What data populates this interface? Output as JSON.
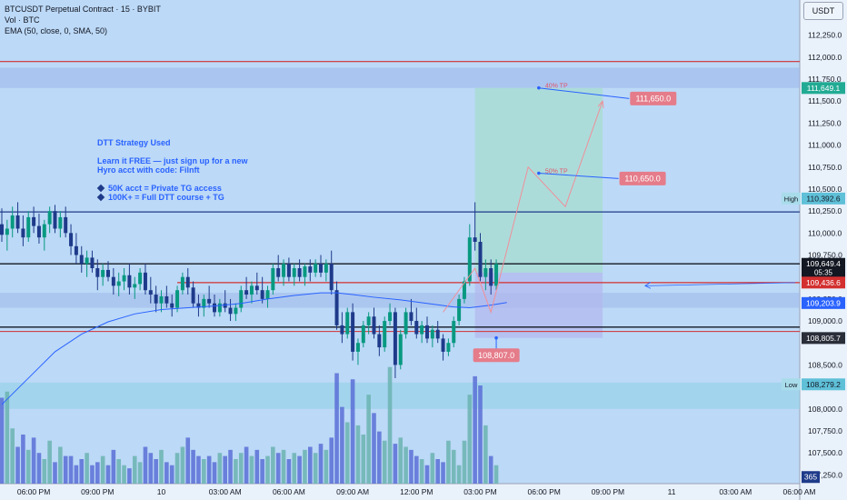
{
  "header": {
    "title": "BTCUSDT Perpetual Contract · 15 · BYBIT",
    "volume": "Vol · BTC",
    "indicator": "EMA (50, close, 0, SMA, 50)"
  },
  "currency": "USDT",
  "note": {
    "line1": "DTT Strategy Used",
    "line2": "Learn it FREE — just sign up for a new",
    "line3": "Hyro acct with code: Filnft",
    "bullet1": "50K acct = Private TG access",
    "bullet2": "100K+ = Full DTT course + TG"
  },
  "price_axis": {
    "ticks": [
      {
        "v": 112500,
        "label": "112,500.0"
      },
      {
        "v": 112250,
        "label": "112,250.0"
      },
      {
        "v": 112000,
        "label": "112,000.0"
      },
      {
        "v": 111750,
        "label": "111,750.0"
      },
      {
        "v": 111500,
        "label": "111,500.0"
      },
      {
        "v": 111250,
        "label": "111,250.0"
      },
      {
        "v": 111000,
        "label": "111,000.0"
      },
      {
        "v": 110750,
        "label": "110,750.0"
      },
      {
        "v": 110500,
        "label": "110,500.0"
      },
      {
        "v": 110250,
        "label": "110,250.0"
      },
      {
        "v": 110000,
        "label": "110,000.0"
      },
      {
        "v": 109750,
        "label": "109,750.0"
      },
      {
        "v": 109250,
        "label": "109,250.0"
      },
      {
        "v": 109000,
        "label": "109,000.0"
      },
      {
        "v": 108500,
        "label": "108,500.0"
      },
      {
        "v": 108000,
        "label": "108,000.0"
      },
      {
        "v": 107750,
        "label": "107,750.0"
      },
      {
        "v": 107500,
        "label": "107,500.0"
      },
      {
        "v": 107250,
        "label": "107,250.0"
      }
    ],
    "badges": [
      {
        "name": "tp-level-badge",
        "v": 111649.1,
        "label": "111,649.1",
        "color": "#22ab94"
      },
      {
        "name": "last-price-badge",
        "v": 109649.4,
        "label": "109,649.4",
        "sub": "05:35",
        "color": "#131722"
      },
      {
        "name": "resistance-badge",
        "v": 109436.6,
        "label": "109,436.6",
        "color": "#d32f2f"
      },
      {
        "name": "ema-badge",
        "v": 109203.9,
        "label": "109,203.9",
        "color": "#2962ff"
      },
      {
        "name": "stop-badge",
        "v": 108805.7,
        "label": "108,805.7",
        "color": "#2a2e39"
      },
      {
        "name": "volume-badge",
        "v": 107225,
        "label": "365",
        "color": "#1e3a8a"
      }
    ],
    "high": {
      "tag": "High",
      "v": 110392.6,
      "label": "110,392.6"
    },
    "low": {
      "tag": "Low",
      "v": 108279.2,
      "label": "108,279.2"
    }
  },
  "time_axis": [
    {
      "label": "06:00 PM",
      "i": 6
    },
    {
      "label": "09:00 PM",
      "i": 18
    },
    {
      "label": "10",
      "i": 30
    },
    {
      "label": "03:00 AM",
      "i": 42
    },
    {
      "label": "06:00 AM",
      "i": 54
    },
    {
      "label": "09:00 AM",
      "i": 66
    },
    {
      "label": "12:00 PM",
      "i": 78
    },
    {
      "label": "03:00 PM",
      "i": 90
    },
    {
      "label": "06:00 PM",
      "i": 102
    },
    {
      "label": "09:00 PM",
      "i": 114
    },
    {
      "label": "11",
      "i": 126
    },
    {
      "label": "03:00 AM",
      "i": 138
    },
    {
      "label": "06:00 AM",
      "i": 150
    }
  ],
  "annotations": {
    "tp40": {
      "text": "40% TP",
      "price": "111,650.0"
    },
    "tp50": {
      "text": "50% TP",
      "price": "110,650.0"
    },
    "sl": {
      "price": "108,807.0"
    }
  },
  "levels": {
    "red_top": 111950,
    "zone_top": [
      111880,
      111650
    ],
    "blue_line": 110240,
    "black_line": 109650,
    "red_line": 109436,
    "zone_mid": [
      109320,
      109150
    ],
    "black_line2": 108930,
    "red_line2": 108880,
    "zone_bottom": [
      108300,
      108000
    ]
  },
  "colors": {
    "bull": "#089981",
    "bear": "#1e3a8a",
    "vol_bull": "#6bb3b0",
    "vol_bear": "#5b6fd6",
    "ema": "#2962ff"
  },
  "chart_data": {
    "type": "candlestick",
    "ylim": [
      107150,
      112650
    ],
    "candles": [
      [
        110100,
        110280,
        109900,
        109980
      ],
      [
        109980,
        110150,
        109800,
        110050
      ],
      [
        110050,
        110300,
        109950,
        110200
      ],
      [
        110200,
        110350,
        110000,
        110050
      ],
      [
        110050,
        110200,
        109850,
        109950
      ],
      [
        109950,
        110250,
        109900,
        110180
      ],
      [
        110180,
        110300,
        110000,
        110080
      ],
      [
        110080,
        110220,
        109880,
        109950
      ],
      [
        109950,
        110150,
        109800,
        110100
      ],
      [
        110100,
        110300,
        110000,
        110250
      ],
      [
        110250,
        110320,
        110000,
        110050
      ],
      [
        110050,
        110250,
        109950,
        110180
      ],
      [
        110180,
        110300,
        109950,
        110000
      ],
      [
        110000,
        110100,
        109750,
        109850
      ],
      [
        109850,
        110000,
        109650,
        109750
      ],
      [
        109750,
        109850,
        109550,
        109650
      ],
      [
        109650,
        109800,
        109500,
        109720
      ],
      [
        109720,
        109800,
        109550,
        109600
      ],
      [
        109600,
        109700,
        109350,
        109500
      ],
      [
        109500,
        109650,
        109400,
        109580
      ],
      [
        109580,
        109680,
        109450,
        109500
      ],
      [
        109500,
        109600,
        109300,
        109400
      ],
      [
        109400,
        109550,
        109280,
        109450
      ],
      [
        109450,
        109600,
        109350,
        109520
      ],
      [
        109520,
        109650,
        109300,
        109380
      ],
      [
        109380,
        109500,
        109250,
        109420
      ],
      [
        109420,
        109600,
        109350,
        109550
      ],
      [
        109550,
        109650,
        109300,
        109350
      ],
      [
        109350,
        109500,
        109200,
        109300
      ],
      [
        109300,
        109400,
        109100,
        109200
      ],
      [
        109200,
        109350,
        109100,
        109280
      ],
      [
        109280,
        109400,
        109150,
        109200
      ],
      [
        109200,
        109300,
        109050,
        109150
      ],
      [
        109150,
        109400,
        109100,
        109350
      ],
      [
        109350,
        109550,
        109300,
        109500
      ],
      [
        109500,
        109600,
        109300,
        109380
      ],
      [
        109380,
        109450,
        109150,
        109200
      ],
      [
        109200,
        109300,
        109050,
        109150
      ],
      [
        109150,
        109300,
        109050,
        109250
      ],
      [
        109250,
        109400,
        109150,
        109200
      ],
      [
        109200,
        109300,
        109050,
        109100
      ],
      [
        109100,
        109250,
        109050,
        109200
      ],
      [
        109200,
        109350,
        109100,
        109150
      ],
      [
        109150,
        109250,
        109000,
        109080
      ],
      [
        109080,
        109200,
        109000,
        109150
      ],
      [
        109150,
        109400,
        109100,
        109350
      ],
      [
        109350,
        109500,
        109250,
        109300
      ],
      [
        109300,
        109450,
        109200,
        109400
      ],
      [
        109400,
        109550,
        109300,
        109350
      ],
      [
        109350,
        109500,
        109200,
        109250
      ],
      [
        109250,
        109400,
        109150,
        109350
      ],
      [
        109350,
        109650,
        109300,
        109600
      ],
      [
        109600,
        109750,
        109450,
        109500
      ],
      [
        109500,
        109700,
        109400,
        109650
      ],
      [
        109650,
        109720,
        109450,
        109500
      ],
      [
        109500,
        109650,
        109400,
        109600
      ],
      [
        109600,
        109700,
        109450,
        109500
      ],
      [
        109500,
        109650,
        109400,
        109620
      ],
      [
        109620,
        109700,
        109450,
        109550
      ],
      [
        109550,
        109700,
        109500,
        109650
      ],
      [
        109650,
        109750,
        109500,
        109550
      ],
      [
        109550,
        109700,
        109450,
        109650
      ],
      [
        109650,
        109800,
        109300,
        109350
      ],
      [
        109350,
        109450,
        108900,
        108950
      ],
      [
        108950,
        109100,
        108750,
        108850
      ],
      [
        108850,
        109150,
        108800,
        109100
      ],
      [
        109100,
        109200,
        108550,
        108650
      ],
      [
        108650,
        108800,
        108500,
        108750
      ],
      [
        108750,
        109000,
        108700,
        108950
      ],
      [
        108950,
        109100,
        108850,
        109050
      ],
      [
        109050,
        109150,
        108800,
        108850
      ],
      [
        108850,
        108950,
        108600,
        108700
      ],
      [
        108700,
        109050,
        108650,
        109000
      ],
      [
        109000,
        109200,
        108950,
        109100
      ],
      [
        109100,
        109150,
        108350,
        108500
      ],
      [
        108500,
        108900,
        108450,
        108850
      ],
      [
        108850,
        109150,
        108800,
        109100
      ],
      [
        109100,
        109250,
        108950,
        109000
      ],
      [
        109000,
        109150,
        108800,
        108850
      ],
      [
        108850,
        109000,
        108750,
        108950
      ],
      [
        108950,
        109050,
        108750,
        108800
      ],
      [
        108800,
        108950,
        108700,
        108900
      ],
      [
        108900,
        109000,
        108750,
        108800
      ],
      [
        108800,
        108850,
        108550,
        108650
      ],
      [
        108650,
        108800,
        108600,
        108750
      ],
      [
        108750,
        109050,
        108700,
        109000
      ],
      [
        109000,
        109300,
        108950,
        109250
      ],
      [
        109250,
        109500,
        109200,
        109450
      ],
      [
        109450,
        110100,
        109400,
        109950
      ],
      [
        109950,
        110350,
        109800,
        109900
      ],
      [
        109900,
        110000,
        109450,
        109500
      ],
      [
        109500,
        109700,
        109350,
        109600
      ],
      [
        109600,
        109700,
        109300,
        109400
      ],
      [
        109400,
        109700,
        109350,
        109649
      ]
    ],
    "volumes": [
      140,
      150,
      90,
      60,
      80,
      55,
      75,
      50,
      40,
      70,
      35,
      60,
      45,
      45,
      30,
      40,
      50,
      30,
      35,
      45,
      30,
      55,
      40,
      30,
      25,
      45,
      35,
      60,
      50,
      40,
      55,
      35,
      30,
      50,
      60,
      75,
      55,
      45,
      40,
      45,
      35,
      50,
      45,
      55,
      40,
      50,
      60,
      45,
      55,
      40,
      45,
      60,
      50,
      55,
      40,
      50,
      45,
      55,
      60,
      50,
      65,
      55,
      75,
      180,
      125,
      100,
      170,
      95,
      80,
      145,
      115,
      85,
      70,
      190,
      65,
      75,
      60,
      55,
      45,
      40,
      30,
      50,
      40,
      35,
      70,
      55,
      30,
      70,
      145,
      175,
      160,
      95,
      45,
      30
    ],
    "ema": [
      [
        0,
        108050
      ],
      [
        5,
        108350
      ],
      [
        10,
        108650
      ],
      [
        15,
        108850
      ],
      [
        20,
        108990
      ],
      [
        25,
        109080
      ],
      [
        30,
        109130
      ],
      [
        35,
        109150
      ],
      [
        40,
        109170
      ],
      [
        45,
        109200
      ],
      [
        50,
        109250
      ],
      [
        55,
        109290
      ],
      [
        60,
        109320
      ],
      [
        63,
        109320
      ],
      [
        66,
        109300
      ],
      [
        70,
        109270
      ],
      [
        75,
        109240
      ],
      [
        80,
        109200
      ],
      [
        85,
        109160
      ],
      [
        88,
        109150
      ],
      [
        92,
        109180
      ],
      [
        95,
        109210
      ]
    ]
  }
}
